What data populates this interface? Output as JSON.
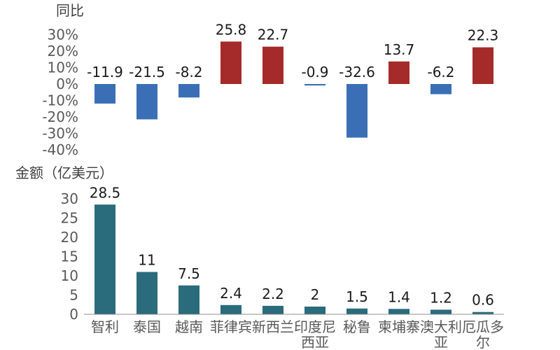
{
  "chart_data": [
    {
      "type": "bar",
      "title": "同比",
      "categories": [
        "智利",
        "泰国",
        "越南",
        "菲律宾",
        "新西兰",
        "印度尼西亚",
        "秘鲁",
        "柬埔寨",
        "澳大利亚",
        "厄瓜多尔"
      ],
      "values": [
        -11.9,
        -21.5,
        -8.2,
        25.8,
        22.7,
        -0.9,
        -32.6,
        13.7,
        -6.2,
        22.3
      ],
      "value_labels": [
        "-11.9",
        "-21.5",
        "-8.2",
        "25.8",
        "22.7",
        "-0.9",
        "-32.6",
        "13.7",
        "-6.2",
        "22.3"
      ],
      "ylim": [
        -40,
        30
      ],
      "yticks": [
        "30%",
        "20%",
        "10%",
        "0%",
        "-10%",
        "-20%",
        "-30%",
        "-40%"
      ],
      "ytick_values": [
        30,
        20,
        10,
        0,
        -10,
        -20,
        -30,
        -40
      ],
      "colors": {
        "positive": "#a52a2a",
        "negative": "#3a6fb5"
      },
      "grid": false
    },
    {
      "type": "bar",
      "title": "金额（亿美元）",
      "categories": [
        "智利",
        "泰国",
        "越南",
        "菲律宾",
        "新西兰",
        "印度尼西亚",
        "秘鲁",
        "柬埔寨",
        "澳大利亚",
        "厄瓜多尔"
      ],
      "category_lines": [
        [
          "智利"
        ],
        [
          "泰国"
        ],
        [
          "越南"
        ],
        [
          "菲律宾"
        ],
        [
          "新西兰"
        ],
        [
          "印度尼",
          "西亚"
        ],
        [
          "秘鲁"
        ],
        [
          "柬埔寨"
        ],
        [
          "澳大利",
          "亚"
        ],
        [
          "厄瓜多",
          "尔"
        ]
      ],
      "values": [
        28.5,
        11,
        7.5,
        2.4,
        2.2,
        2,
        1.5,
        1.4,
        1.2,
        0.6
      ],
      "value_labels": [
        "28.5",
        "11",
        "7.5",
        "2.4",
        "2.2",
        "2",
        "1.5",
        "1.4",
        "1.2",
        "0.6"
      ],
      "ylim": [
        0,
        30
      ],
      "yticks": [
        "30",
        "25",
        "20",
        "15",
        "10",
        "5",
        "0"
      ],
      "ytick_values": [
        30,
        25,
        20,
        15,
        10,
        5,
        0
      ],
      "colors": {
        "bar": "#2a6b7c"
      },
      "grid": false
    }
  ]
}
